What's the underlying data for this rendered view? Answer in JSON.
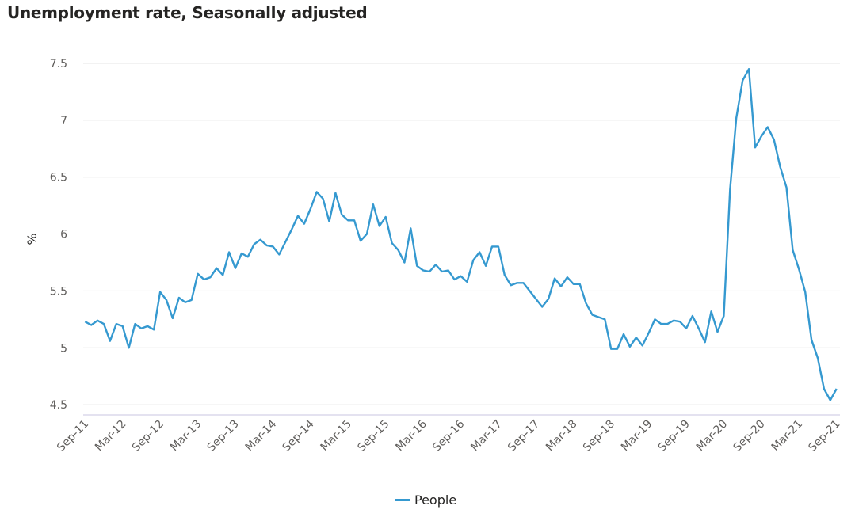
{
  "chart_data": {
    "type": "line",
    "title": "Unemployment rate, Seasonally adjusted",
    "xlabel": "",
    "ylabel": "%",
    "ylim": [
      4.41,
      7.5
    ],
    "yticks": [
      4.5,
      5,
      5.5,
      6,
      6.5,
      7,
      7.5
    ],
    "ytick_labels": [
      "4.5",
      "5",
      "5.5",
      "6",
      "6.5",
      "7",
      "7.5"
    ],
    "xtick_labels": [
      "Sep-11",
      "Mar-12",
      "Sep-12",
      "Mar-13",
      "Sep-13",
      "Mar-14",
      "Sep-14",
      "Mar-15",
      "Sep-15",
      "Mar-16",
      "Sep-16",
      "Mar-17",
      "Sep-17",
      "Mar-18",
      "Sep-18",
      "Mar-19",
      "Sep-19",
      "Mar-20",
      "Sep-20",
      "Mar-21",
      "Sep-21"
    ],
    "x_start": "Sep-11",
    "x_end": "Sep-21",
    "frequency": "monthly",
    "grid": true,
    "legend_position": "bottom-center",
    "series": [
      {
        "name": "People",
        "color": "#3599d0",
        "values": [
          5.23,
          5.2,
          5.24,
          5.21,
          5.06,
          5.21,
          5.19,
          5.0,
          5.21,
          5.17,
          5.19,
          5.16,
          5.49,
          5.42,
          5.26,
          5.44,
          5.4,
          5.42,
          5.65,
          5.6,
          5.62,
          5.7,
          5.64,
          5.84,
          5.7,
          5.83,
          5.8,
          5.91,
          5.95,
          5.9,
          5.89,
          5.82,
          5.93,
          6.04,
          6.16,
          6.09,
          6.22,
          6.37,
          6.31,
          6.11,
          6.36,
          6.17,
          6.12,
          6.12,
          5.94,
          6.0,
          6.26,
          6.07,
          6.15,
          5.92,
          5.86,
          5.75,
          6.05,
          5.72,
          5.68,
          5.67,
          5.73,
          5.67,
          5.68,
          5.6,
          5.63,
          5.58,
          5.77,
          5.84,
          5.72,
          5.89,
          5.89,
          5.64,
          5.55,
          5.57,
          5.57,
          5.5,
          5.43,
          5.36,
          5.43,
          5.61,
          5.54,
          5.62,
          5.56,
          5.56,
          5.39,
          5.29,
          5.27,
          5.25,
          4.99,
          4.99,
          5.12,
          5.01,
          5.09,
          5.02,
          5.13,
          5.25,
          5.21,
          5.21,
          5.24,
          5.23,
          5.17,
          5.28,
          5.17,
          5.05,
          5.32,
          5.14,
          5.28,
          6.39,
          7.02,
          7.35,
          7.45,
          6.76,
          6.86,
          6.94,
          6.83,
          6.59,
          6.41,
          5.86,
          5.69,
          5.49,
          5.07,
          4.91,
          4.64,
          4.54,
          4.64
        ]
      }
    ]
  }
}
